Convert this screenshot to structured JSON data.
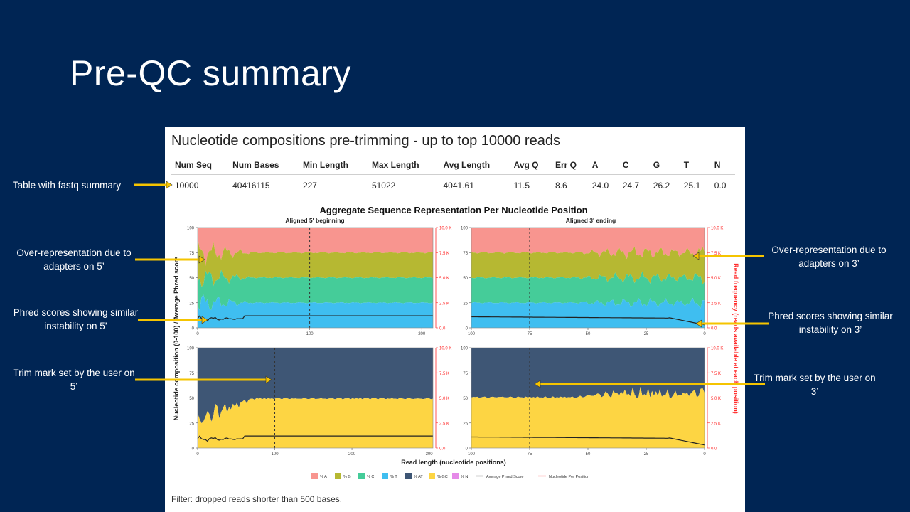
{
  "slide": {
    "title": "Pre-QC summary"
  },
  "annotations": [
    {
      "text": "Table with fastq summary"
    },
    {
      "text": "Over-representation due to adapters on 5’"
    },
    {
      "text": "Phred scores showing similar instability on 5’"
    },
    {
      "text": "Trim mark set by the user on 5’"
    },
    {
      "text": "Over-representation due to adapters on 3’"
    },
    {
      "text": "Phred scores showing similar instability on 3’"
    },
    {
      "text": "Trim mark set by the user on 3’"
    }
  ],
  "panel": {
    "heading": "Nucleotide compositions pre-trimming - up to top 10000 reads",
    "table": {
      "headers": [
        "Num Seq",
        "Num Bases",
        "Min Length",
        "Max Length",
        "Avg Length",
        "Avg Q",
        "Err Q",
        "A",
        "C",
        "G",
        "T",
        "N"
      ],
      "row": [
        "10000",
        "40416115",
        "227",
        "51022",
        "4041.61",
        "11.5",
        "8.6",
        "24.0",
        "24.7",
        "26.2",
        "25.1",
        "0.0"
      ]
    },
    "filter_note": "Filter: dropped reads shorter than 500 bases."
  },
  "colors": {
    "background": "#002554",
    "arrow": "#f5c400",
    "pct_A": "#f8958f",
    "pct_G": "#b6b832",
    "pct_C": "#45cc99",
    "pct_T": "#3fbef0",
    "pct_AT": "#3e5675",
    "pct_GC": "#fdd543",
    "pct_N": "#e58ae8",
    "phred_line": "#222222",
    "frequency_line": "#ff2a2a"
  },
  "chart_data": {
    "type": "area",
    "title": "Aggregate Sequence Representation Per Nucleotide Position",
    "xlabel": "Read length (nucleotide positions)",
    "ylabel": "Nucleotide composition (0-100) / Average Phred score",
    "y2label": "Read frequency (reads available at each position)",
    "facets": [
      "Aligned 5' beginning",
      "Aligned 3' ending"
    ],
    "ylim": [
      0,
      100
    ],
    "y_ticks": [
      "0",
      "25",
      "50",
      "75",
      "100"
    ],
    "y2_ticks": [
      "0.0",
      "2.5 K",
      "5.0 K",
      "7.5 K",
      "10.0 K"
    ],
    "x_ticks_5prime_top": [
      "0",
      "100",
      "200"
    ],
    "x_ticks_5prime_bottom": [
      "0",
      "100",
      "200",
      "300"
    ],
    "x_ticks_3prime": [
      "100",
      "75",
      "50",
      "25",
      "0"
    ],
    "trim_mark_5prime": 100,
    "trim_mark_3prime": 75,
    "legend": [
      "% A",
      "% G",
      "% C",
      "% T",
      "% AT",
      "% GC",
      "% N",
      "Average Phred Score",
      "Nucleotide Per Position"
    ],
    "x": [
      0,
      10,
      20,
      30,
      40,
      50,
      60,
      80,
      100,
      150,
      200
    ],
    "series": [
      {
        "name": "% A",
        "values": [
          25,
          30,
          20,
          35,
          22,
          28,
          25,
          25,
          25,
          25,
          25
        ]
      },
      {
        "name": "% G",
        "values": [
          25,
          10,
          35,
          15,
          30,
          20,
          25,
          25,
          25,
          25,
          25
        ]
      },
      {
        "name": "% C",
        "values": [
          25,
          35,
          20,
          30,
          25,
          30,
          25,
          25,
          25,
          25,
          25
        ]
      },
      {
        "name": "% T",
        "values": [
          25,
          25,
          25,
          20,
          23,
          22,
          25,
          25,
          25,
          25,
          25
        ]
      },
      {
        "name": "Average Phred Score",
        "values": [
          5,
          10,
          12,
          9,
          12,
          11,
          12,
          12,
          12,
          12,
          12
        ]
      }
    ]
  }
}
